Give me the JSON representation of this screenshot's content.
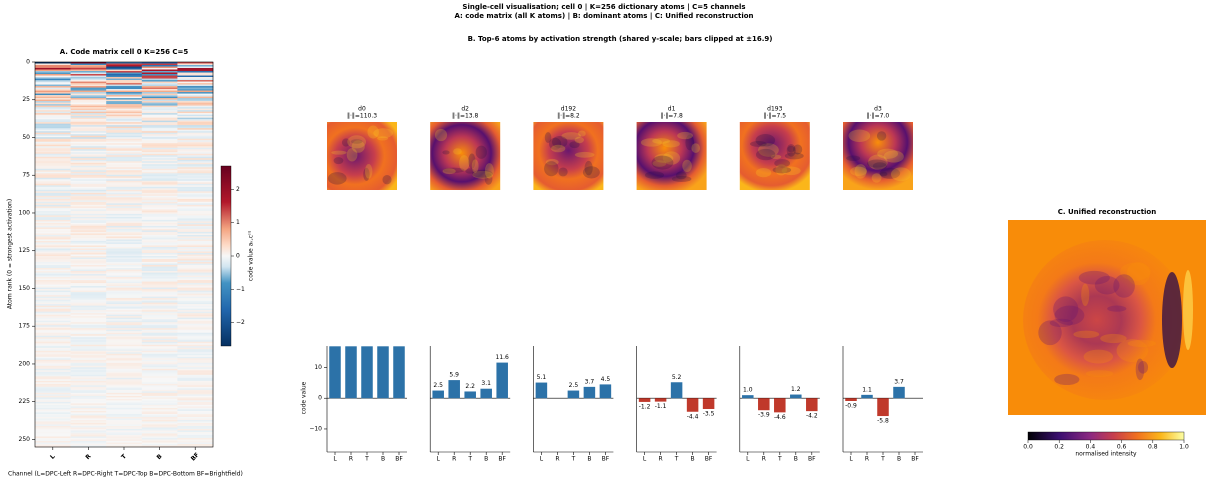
{
  "title": "Single-cell visualisation; cell 0  |  K=256 dictionary atoms  |  C=5 channels",
  "subtitle": "A: code matrix (all K atoms)   |   B: dominant atoms   |   C: Unified reconstruction",
  "chart_data": [
    {
      "type": "heatmap",
      "title": "A.  Code matrix   cell 0   K=256   C=5",
      "categories": [
        "L",
        "R",
        "T",
        "B",
        "BF"
      ],
      "ylabel": "Atom rank  (0 = strongest activation)",
      "xlabel": "Channel  (L=DPC-Left  R=DPC-Right  T=DPC-Top  B=DPC-Bottom  BF=Brightfield)",
      "ylim": [
        0,
        255
      ],
      "yticks": [
        0,
        25,
        50,
        75,
        100,
        125,
        150,
        175,
        200,
        225,
        250
      ],
      "colorbar": {
        "label": "code value  aₖ,c⁽ⁱ⁾",
        "lim": [
          -2.7,
          2.7
        ],
        "ticks": [
          {
            "value": -2,
            "label": "−2"
          },
          {
            "value": -1,
            "label": "−1"
          },
          0,
          1,
          2
        ]
      }
    },
    {
      "type": "bar-group",
      "title": "B.  Top-6 atoms by activation strength   (shared y-scale; bars clipped at ±16.9)",
      "categories": [
        "L",
        "R",
        "T",
        "B",
        "BF"
      ],
      "ylabel": "code value",
      "ylim": [
        -17.5,
        17
      ],
      "yticks": [
        {
          "value": -10,
          "label": "−10"
        },
        0,
        10
      ],
      "pos_color": "#2c72a8",
      "neg_color": "#c0392b",
      "atoms": [
        {
          "name": "d0",
          "norm": "‖·‖=110.3",
          "values": [
            16.9,
            16.9,
            16.9,
            16.9,
            16.9
          ],
          "value_labels": [
            null,
            null,
            null,
            null,
            null
          ]
        },
        {
          "name": "d2",
          "norm": "‖·‖=13.8",
          "values": [
            2.5,
            5.9,
            2.2,
            3.1,
            11.6
          ],
          "value_labels": [
            "2.5",
            "5.9",
            "2.2",
            "3.1",
            "11.6"
          ]
        },
        {
          "name": "d192",
          "norm": "‖·‖=8.2",
          "values": [
            5.1,
            0,
            2.5,
            3.7,
            4.5
          ],
          "value_labels": [
            "5.1",
            null,
            "2.5",
            "3.7",
            "4.5"
          ]
        },
        {
          "name": "d1",
          "norm": "‖·‖=7.8",
          "values": [
            -1.2,
            -1.1,
            5.2,
            -4.4,
            -3.5
          ],
          "value_labels": [
            "-1.2",
            "-1.1",
            "5.2",
            "-4.4",
            "-3.5"
          ]
        },
        {
          "name": "d193",
          "norm": "‖·‖=7.5",
          "values": [
            1.0,
            -3.9,
            -4.6,
            1.2,
            -4.2
          ],
          "value_labels": [
            "1.0",
            "-3.9",
            "-4.6",
            "1.2",
            "-4.2"
          ]
        },
        {
          "name": "d3",
          "norm": "‖·‖=7.0",
          "values": [
            -0.9,
            1.1,
            -5.8,
            3.7,
            0
          ],
          "value_labels": [
            "-0.9",
            "1.1",
            "-5.8",
            "3.7",
            null
          ]
        }
      ]
    },
    {
      "type": "image",
      "title": "C.  Unified reconstruction",
      "colorbar": {
        "label": "normalised intensity",
        "lim": [
          0,
          1
        ],
        "ticks": [
          {
            "value": 0,
            "label": "0.0"
          },
          0.2,
          0.4,
          0.6,
          0.8,
          {
            "value": 1,
            "label": "1.0"
          }
        ]
      }
    }
  ]
}
